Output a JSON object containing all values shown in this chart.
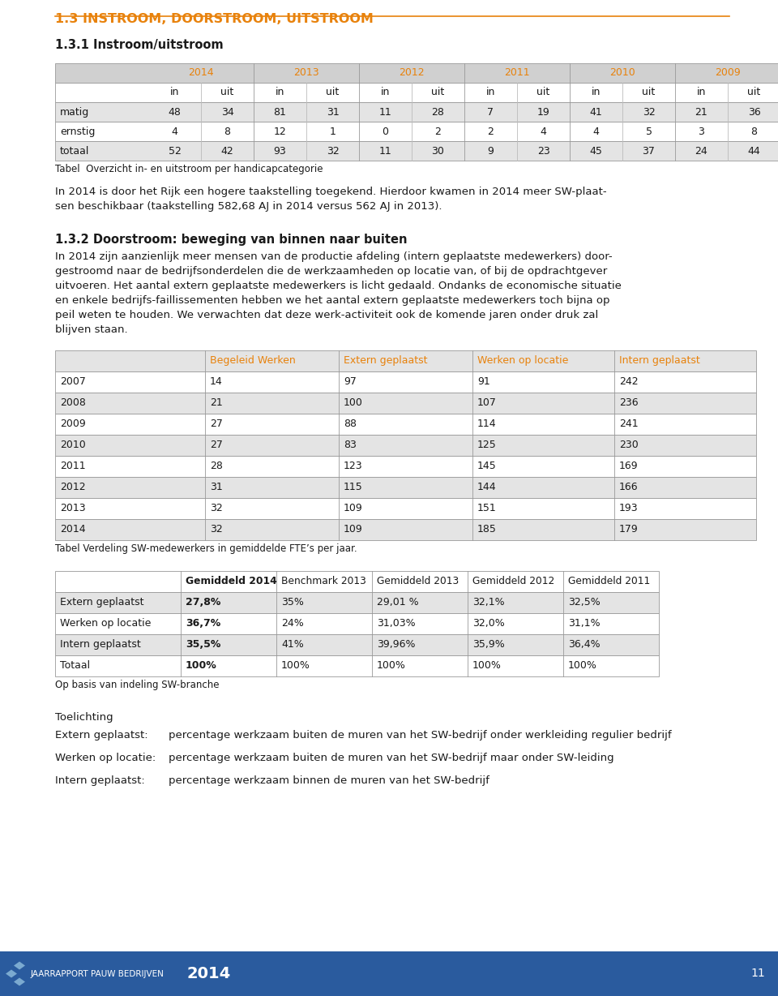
{
  "header_title": "1.3 INSTROOM, DOORSTROOM, UITSTROOM",
  "section_title": "1.3.1 Instroom/uitstroom",
  "table1_years": [
    "2014",
    "2013",
    "2012",
    "2011",
    "2010",
    "2009"
  ],
  "table1_rows": [
    [
      "matig",
      48,
      34,
      81,
      31,
      11,
      28,
      7,
      19,
      41,
      32,
      21,
      36
    ],
    [
      "ernstig",
      4,
      8,
      12,
      1,
      0,
      2,
      2,
      4,
      4,
      5,
      3,
      8
    ],
    [
      "totaal",
      52,
      42,
      93,
      32,
      11,
      30,
      9,
      23,
      45,
      37,
      24,
      44
    ]
  ],
  "table1_caption": "Tabel  Overzicht in- en uitstroom per handicapcategorie",
  "para1_lines": [
    "In 2014 is door het Rijk een hogere taakstelling toegekend. Hierdoor kwamen in 2014 meer SW-plaat-",
    "sen beschikbaar (taakstelling 582,68 AJ in 2014 versus 562 AJ in 2013)."
  ],
  "section2_title": "1.3.2 Doorstroom: beweging van binnen naar buiten",
  "para2_lines": [
    "In 2014 zijn aanzienlijk meer mensen van de productie afdeling (intern geplaatste medewerkers) door-",
    "gestroomd naar de bedrijfsonderdelen die de werkzaamheden op locatie van, of bij de opdrachtgever",
    "uitvoeren. Het aantal extern geplaatste medewerkers is licht gedaald. Ondanks de economische situatie",
    "en enkele bedrijfs-faillissementen hebben we het aantal extern geplaatste medewerkers toch bijna op",
    "peil weten te houden. We verwachten dat deze werk-activiteit ook de komende jaren onder druk zal",
    "blijven staan."
  ],
  "table2_headers": [
    "",
    "Begeleid Werken",
    "Extern geplaatst",
    "Werken op locatie",
    "Intern geplaatst"
  ],
  "table2_rows": [
    [
      "2007",
      "14",
      "97",
      "91",
      "242"
    ],
    [
      "2008",
      "21",
      "100",
      "107",
      "236"
    ],
    [
      "2009",
      "27",
      "88",
      "114",
      "241"
    ],
    [
      "2010",
      "27",
      "83",
      "125",
      "230"
    ],
    [
      "2011",
      "28",
      "123",
      "145",
      "169"
    ],
    [
      "2012",
      "31",
      "115",
      "144",
      "166"
    ],
    [
      "2013",
      "32",
      "109",
      "151",
      "193"
    ],
    [
      "2014",
      "32",
      "109",
      "185",
      "179"
    ]
  ],
  "table2_caption": "Tabel Verdeling SW-medewerkers in gemiddelde FTE’s per jaar.",
  "table3_headers": [
    "",
    "Gemiddeld 2014",
    "Benchmark 2013",
    "Gemiddeld 2013",
    "Gemiddeld 2012",
    "Gemiddeld 2011"
  ],
  "table3_rows": [
    [
      "Extern geplaatst",
      "27,8%",
      "35%",
      "29,01 %",
      "32,1%",
      "32,5%"
    ],
    [
      "Werken op locatie",
      "36,7%",
      "24%",
      "31,03%",
      "32,0%",
      "31,1%"
    ],
    [
      "Intern geplaatst",
      "35,5%",
      "41%",
      "39,96%",
      "35,9%",
      "36,4%"
    ],
    [
      "Totaal",
      "100%",
      "100%",
      "100%",
      "100%",
      "100%"
    ]
  ],
  "table3_caption": "Op basis van indeling SW-branche",
  "toelichting_title": "Toelichting",
  "toelichting_rows": [
    [
      "Extern geplaatst:",
      "percentage werkzaam buiten de muren van het SW-bedrijf onder werkleiding regulier bedrijf"
    ],
    [
      "Werken op locatie:",
      "percentage werkzaam buiten de muren van het SW-bedrijf maar onder SW-leiding"
    ],
    [
      "Intern geplaatst:",
      "percentage werkzaam binnen de muren van het SW-bedrijf"
    ]
  ],
  "footer_text": "JAARRAPPORT PAUW BEDRIJVEN",
  "footer_year": "2014",
  "footer_page": "11",
  "orange_color": "#E8820C",
  "footer_bg": "#2A5B9E",
  "light_gray_row": "#E4E4E4",
  "medium_gray": "#D0D0D0",
  "white": "#FFFFFF",
  "text_color": "#1A1A1A",
  "border_color": "#999999"
}
